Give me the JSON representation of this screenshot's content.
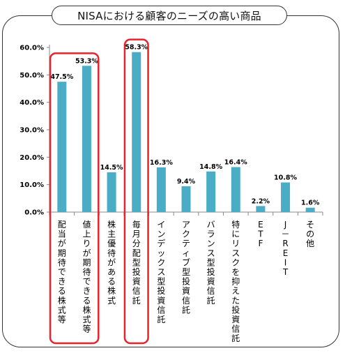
{
  "chart_data": {
    "type": "bar",
    "title": "NISAにおける顧客のニーズの高い商品",
    "categories": [
      "配当が期待できる株式等",
      "値上りが期待できる株式等",
      "株主優待がある株式",
      "毎月分配型投資信託",
      "インデックス型投資信託",
      "アクティブ型投資信託",
      "バランス型投資信託",
      "特にリスクを抑えた投資信託",
      "ETF",
      "J－REIT",
      "その他"
    ],
    "values": [
      47.5,
      53.3,
      14.5,
      58.3,
      16.3,
      9.4,
      14.8,
      16.4,
      2.2,
      10.8,
      1.6
    ],
    "data_labels": [
      "47.5%",
      "53.3%",
      "14.5%",
      "58.3%",
      "16.3%",
      "9.4%",
      "14.8%",
      "16.4%",
      "2.2%",
      "10.8%",
      "1.6%"
    ],
    "yticks": [
      "0.0%",
      "10.0%",
      "20.0%",
      "30.0%",
      "40.0%",
      "50.0%",
      "60.0%"
    ],
    "ylim": [
      0,
      60
    ],
    "xlabel": "",
    "ylabel": "",
    "legend": "none",
    "grid": false,
    "bar_color": "#4bacc6",
    "highlight_color": "#e8232a",
    "highlighted_groups": [
      [
        0,
        1
      ],
      [
        3
      ]
    ]
  }
}
